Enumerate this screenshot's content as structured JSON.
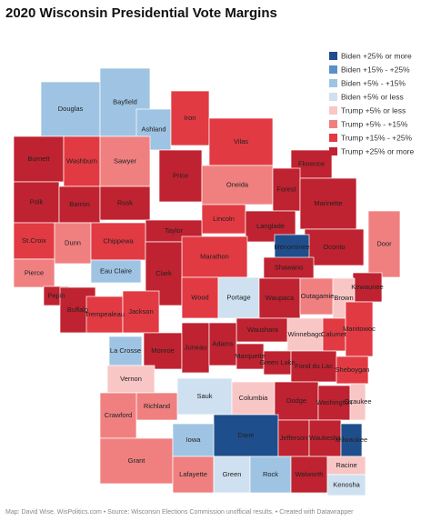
{
  "title": "2020 Wisconsin Presidential Vote Margins",
  "legend": [
    {
      "label": "Biden +25% or more",
      "color": "#1f4e8c"
    },
    {
      "label": "Biden +15% - +25%",
      "color": "#5b8fc9"
    },
    {
      "label": "Biden +5% - +15%",
      "color": "#9fc4e3"
    },
    {
      "label": "Biden +5% or less",
      "color": "#cfe1f0"
    },
    {
      "label": "Trump +5% or less",
      "color": "#f9c6c6"
    },
    {
      "label": "Trump +5% - +15%",
      "color": "#f08080"
    },
    {
      "label": "Trump +15% - +25%",
      "color": "#e23a42"
    },
    {
      "label": "Trump +25% or more",
      "color": "#bf2230"
    }
  ],
  "counties": [
    {
      "name": "Douglas",
      "category": "Biden +5% - +15%"
    },
    {
      "name": "Bayfield",
      "category": "Biden +5% - +15%"
    },
    {
      "name": "Ashland",
      "category": "Biden +5% - +15%"
    },
    {
      "name": "Iron",
      "category": "Trump +15% - +25%"
    },
    {
      "name": "Vilas",
      "category": "Trump +15% - +25%"
    },
    {
      "name": "Florence",
      "category": "Trump +25% or more"
    },
    {
      "name": "Burnett",
      "category": "Trump +25% or more"
    },
    {
      "name": "Washburn",
      "category": "Trump +15% - +25%"
    },
    {
      "name": "Sawyer",
      "category": "Trump +5% - +15%"
    },
    {
      "name": "Price",
      "category": "Trump +25% or more"
    },
    {
      "name": "Oneida",
      "category": "Trump +5% - +15%"
    },
    {
      "name": "Forest",
      "category": "Trump +25% or more"
    },
    {
      "name": "Marinette",
      "category": "Trump +25% or more"
    },
    {
      "name": "Polk",
      "category": "Trump +25% or more"
    },
    {
      "name": "Barron",
      "category": "Trump +25% or more"
    },
    {
      "name": "Rusk",
      "category": "Trump +25% or more"
    },
    {
      "name": "Lincoln",
      "category": "Trump +15% - +25%"
    },
    {
      "name": "Langlade",
      "category": "Trump +25% or more"
    },
    {
      "name": "Taylor",
      "category": "Trump +25% or more"
    },
    {
      "name": "Oconto",
      "category": "Trump +25% or more"
    },
    {
      "name": "Menominee",
      "category": "Biden +25% or more"
    },
    {
      "name": "St.Croix",
      "category": "Trump +15% - +25%"
    },
    {
      "name": "Dunn",
      "category": "Trump +5% - +15%"
    },
    {
      "name": "Chippewa",
      "category": "Trump +15% - +25%"
    },
    {
      "name": "Marathon",
      "category": "Trump +15% - +25%"
    },
    {
      "name": "Shawano",
      "category": "Trump +25% or more"
    },
    {
      "name": "Door",
      "category": "Trump +5% - +15%"
    },
    {
      "name": "Pierce",
      "category": "Trump +5% - +15%"
    },
    {
      "name": "Eau Claire",
      "category": "Biden +5% - +15%"
    },
    {
      "name": "Clark",
      "category": "Trump +25% or more"
    },
    {
      "name": "Kewaunee",
      "category": "Trump +25% or more"
    },
    {
      "name": "Pepin",
      "category": "Trump +25% or more"
    },
    {
      "name": "Buffalo",
      "category": "Trump +25% or more"
    },
    {
      "name": "Wood",
      "category": "Trump +15% - +25%"
    },
    {
      "name": "Portage",
      "category": "Biden +5% or less"
    },
    {
      "name": "Waupaca",
      "category": "Trump +25% or more"
    },
    {
      "name": "Outagamie",
      "category": "Trump +5% - +15%"
    },
    {
      "name": "Brown",
      "category": "Trump +5% or less"
    },
    {
      "name": "Trempealeau",
      "category": "Trump +15% - +25%"
    },
    {
      "name": "Jackson",
      "category": "Trump +15% - +25%"
    },
    {
      "name": "Calumet",
      "category": "Trump +15% - +25%"
    },
    {
      "name": "Manitowoc",
      "category": "Trump +15% - +25%"
    },
    {
      "name": "Waushara",
      "category": "Trump +25% or more"
    },
    {
      "name": "Winnebago",
      "category": "Trump +5% or less"
    },
    {
      "name": "La Crosse",
      "category": "Biden +5% - +15%"
    },
    {
      "name": "Monroe",
      "category": "Trump +25% or more"
    },
    {
      "name": "Juneau",
      "category": "Trump +25% or more"
    },
    {
      "name": "Adams",
      "category": "Trump +25% or more"
    },
    {
      "name": "Marquette",
      "category": "Trump +25% or more"
    },
    {
      "name": "Green Lake",
      "category": "Trump +25% or more"
    },
    {
      "name": "Fond du Lac",
      "category": "Trump +25% or more"
    },
    {
      "name": "Sheboygan",
      "category": "Trump +15% - +25%"
    },
    {
      "name": "Vernon",
      "category": "Trump +5% or less"
    },
    {
      "name": "Sauk",
      "category": "Biden +5% or less"
    },
    {
      "name": "Columbia",
      "category": "Trump +5% or less"
    },
    {
      "name": "Dodge",
      "category": "Trump +25% or more"
    },
    {
      "name": "Washington",
      "category": "Trump +25% or more"
    },
    {
      "name": "Ozaukee",
      "category": "Trump +5% or less"
    },
    {
      "name": "Richland",
      "category": "Trump +5% - +15%"
    },
    {
      "name": "Crawford",
      "category": "Trump +5% - +15%"
    },
    {
      "name": "Dane",
      "category": "Biden +25% or more"
    },
    {
      "name": "Jefferson",
      "category": "Trump +25% or more"
    },
    {
      "name": "Waukesha",
      "category": "Trump +25% or more"
    },
    {
      "name": "Milwaukee",
      "category": "Biden +25% or more"
    },
    {
      "name": "Grant",
      "category": "Trump +5% - +15%"
    },
    {
      "name": "Iowa",
      "category": "Biden +5% - +15%"
    },
    {
      "name": "Lafayette",
      "category": "Trump +5% - +15%"
    },
    {
      "name": "Green",
      "category": "Biden +5% or less"
    },
    {
      "name": "Rock",
      "category": "Biden +5% - +15%"
    },
    {
      "name": "Walworth",
      "category": "Trump +25% or more"
    },
    {
      "name": "Racine",
      "category": "Trump +5% or less"
    },
    {
      "name": "Kenosha",
      "category": "Biden +5% or less"
    }
  ],
  "footer": "Map: David Wise, WisPolitics.com • Source: Wisconsin Elections Commission unofficial results. • Created with Datawrapper"
}
